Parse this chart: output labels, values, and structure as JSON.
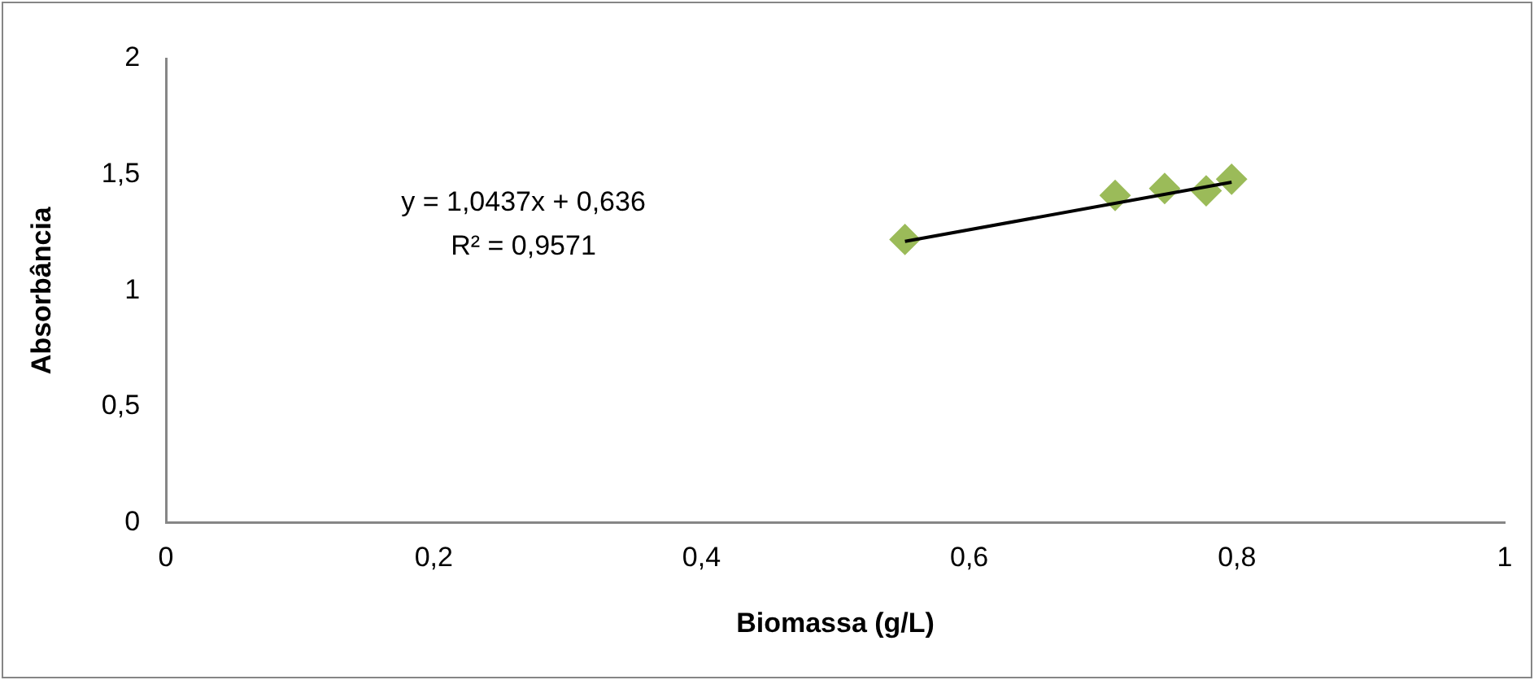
{
  "chart_data": {
    "type": "scatter",
    "xlabel": "Biomassa (g/L)",
    "ylabel": "Absorbância",
    "series": [
      {
        "type": "scatter",
        "marker": "diamond",
        "color": "#9bbb59",
        "x": [
          0.552,
          0.709,
          0.746,
          0.777,
          0.796
        ],
        "values": [
          1.22,
          1.41,
          1.44,
          1.43,
          1.48
        ]
      },
      {
        "type": "line",
        "marker": "none",
        "color": "#000000",
        "x": [
          0.552,
          0.796
        ],
        "values": [
          1.212,
          1.467
        ]
      }
    ],
    "xlim": [
      0,
      1
    ],
    "ylim": [
      0,
      2
    ],
    "xticks": [
      0,
      {
        "value": 0.2,
        "label": "0,2"
      },
      {
        "value": 0.4,
        "label": "0,4"
      },
      {
        "value": 0.6,
        "label": "0,6"
      },
      {
        "value": 0.8,
        "label": "0,8"
      },
      1
    ],
    "yticks": [
      0,
      {
        "value": 0.5,
        "label": "0,5"
      },
      1,
      {
        "value": 1.5,
        "label": "1,5"
      },
      2
    ],
    "annotations": [
      "y = 1,0437x + 0,636",
      "R² = 0,9571"
    ],
    "grid": false,
    "legend": false
  }
}
